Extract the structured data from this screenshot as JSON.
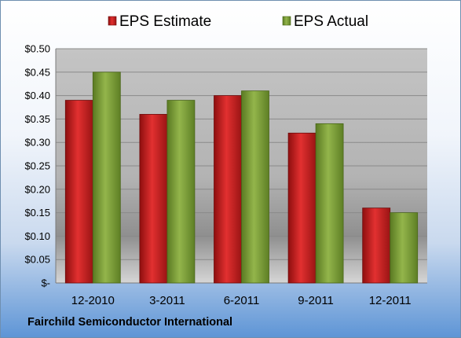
{
  "company": "Fairchild Semiconductor International",
  "chart_data": {
    "type": "bar",
    "categories": [
      "12-2010",
      "3-2011",
      "6-2011",
      "9-2011",
      "12-2011"
    ],
    "series": [
      {
        "name": "EPS Estimate",
        "color": "#cc1c1c",
        "values": [
          0.39,
          0.36,
          0.4,
          0.32,
          0.16
        ]
      },
      {
        "name": "EPS Actual",
        "color": "#7fa13b",
        "values": [
          0.45,
          0.39,
          0.41,
          0.34,
          0.15
        ]
      }
    ],
    "ylim": [
      0,
      0.5
    ],
    "yticks": [
      {
        "value": 0.0,
        "label": "$-"
      },
      {
        "value": 0.05,
        "label": "$0.05"
      },
      {
        "value": 0.1,
        "label": "$0.10"
      },
      {
        "value": 0.15,
        "label": "$0.15"
      },
      {
        "value": 0.2,
        "label": "$0.20"
      },
      {
        "value": 0.25,
        "label": "$0.25"
      },
      {
        "value": 0.3,
        "label": "$0.30"
      },
      {
        "value": 0.35,
        "label": "$0.35"
      },
      {
        "value": 0.4,
        "label": "$0.40"
      },
      {
        "value": 0.45,
        "label": "$0.45"
      },
      {
        "value": 0.5,
        "label": "$0.50"
      }
    ],
    "grid": true,
    "legend": "top"
  }
}
